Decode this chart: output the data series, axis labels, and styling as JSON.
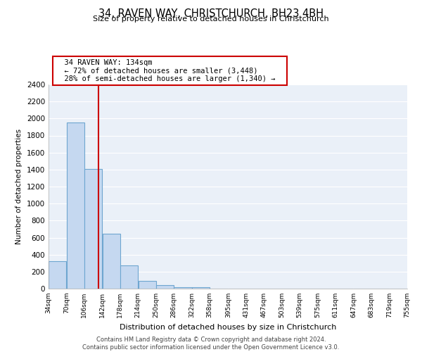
{
  "title": "34, RAVEN WAY, CHRISTCHURCH, BH23 4BH",
  "subtitle": "Size of property relative to detached houses in Christchurch",
  "xlabel": "Distribution of detached houses by size in Christchurch",
  "ylabel": "Number of detached properties",
  "bar_edges": [
    34,
    70,
    106,
    142,
    178,
    214,
    250,
    286,
    322,
    358,
    395,
    431,
    467,
    503,
    539,
    575,
    611,
    647,
    683,
    719,
    755
  ],
  "bar_heights": [
    325,
    1950,
    1410,
    645,
    270,
    95,
    40,
    20,
    15,
    0,
    0,
    0,
    0,
    0,
    0,
    0,
    0,
    0,
    0,
    0
  ],
  "bar_color": "#c5d8f0",
  "bar_edge_color": "#6ea6d0",
  "marker_label": "34 RAVEN WAY: 134sqm",
  "annotation_line1": "← 72% of detached houses are smaller (3,448)",
  "annotation_line2": "28% of semi-detached houses are larger (1,340) →",
  "vline_color": "#cc0000",
  "vline_x": 134,
  "ylim": [
    0,
    2400
  ],
  "yticks": [
    0,
    200,
    400,
    600,
    800,
    1000,
    1200,
    1400,
    1600,
    1800,
    2000,
    2200,
    2400
  ],
  "tick_labels": [
    "34sqm",
    "70sqm",
    "106sqm",
    "142sqm",
    "178sqm",
    "214sqm",
    "250sqm",
    "286sqm",
    "322sqm",
    "358sqm",
    "395sqm",
    "431sqm",
    "467sqm",
    "503sqm",
    "539sqm",
    "575sqm",
    "611sqm",
    "647sqm",
    "683sqm",
    "719sqm",
    "755sqm"
  ],
  "footer_line1": "Contains HM Land Registry data © Crown copyright and database right 2024.",
  "footer_line2": "Contains public sector information licensed under the Open Government Licence v3.0.",
  "bg_color": "#ffffff",
  "plot_bg_color": "#eaf0f8",
  "grid_color": "#ffffff"
}
